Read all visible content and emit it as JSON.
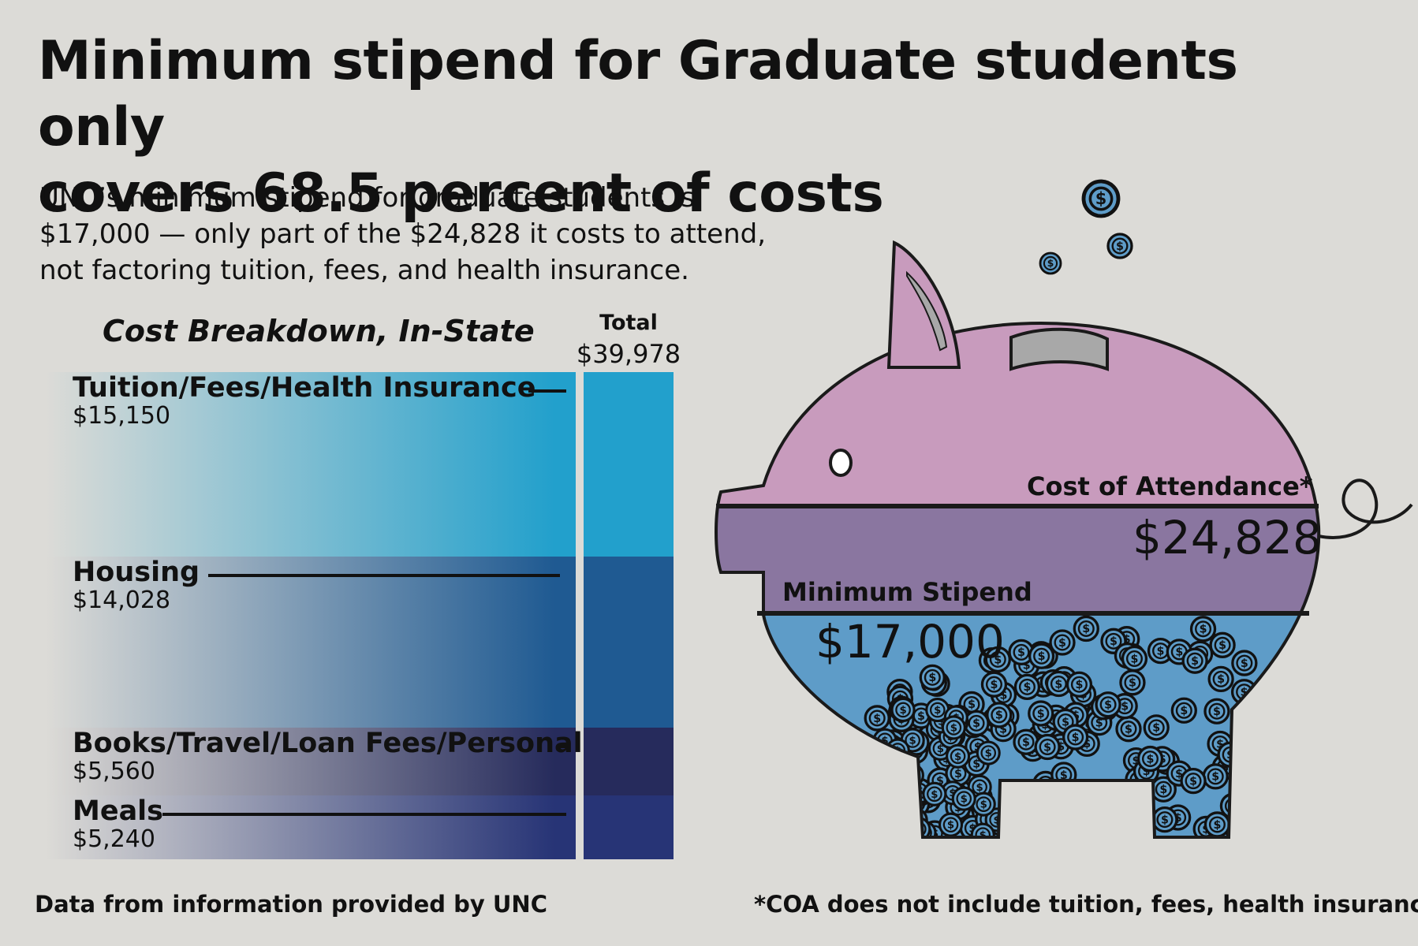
{
  "header": {
    "title_line1": "Minimum stipend for Graduate students only",
    "title_line2": "covers 68.5 percent of costs",
    "subtitle_line1": "UNC’s minimum stipend for graduate students is",
    "subtitle_line2": "$17,000 — only part of the $24,828 it costs to attend,",
    "subtitle_line3": "not factoring tuition, fees, and health insurance."
  },
  "breakdown": {
    "heading": "Cost Breakdown, In-State",
    "total_label": "Total",
    "total_value": "$39,978"
  },
  "piggy": {
    "coa_label": "Cost of Attendance*",
    "coa_value": "$24,828",
    "stipend_label": "Minimum Stipend",
    "stipend_value": "$17,000",
    "coin_symbol": "$"
  },
  "footer": {
    "source": "Data from information provided by UNC",
    "note": "*COA does not include tuition, fees, health insurance"
  },
  "colors": {
    "background": "#dcdbd7",
    "tuition": "#22a0cc",
    "housing": "#1f5a92",
    "books": "#262b5c",
    "meals": "#273476",
    "pig_pink": "#c89bbd",
    "pig_band": "#8a76a0",
    "pig_stipend": "#5e9cc8"
  },
  "chart_data": {
    "type": "bar",
    "stacked": true,
    "title": "Cost Breakdown, In-State",
    "total": 39978,
    "categories": [
      "Tuition/Fees/Health Insurance",
      "Housing",
      "Books/Travel/Loan Fees/Personal",
      "Meals"
    ],
    "values": [
      15150,
      14028,
      5560,
      5240
    ],
    "value_labels": [
      "$15,150",
      "$14,028",
      "$5,560",
      "$5,240"
    ],
    "comparison": {
      "cost_of_attendance": 24828,
      "minimum_stipend": 17000
    }
  }
}
